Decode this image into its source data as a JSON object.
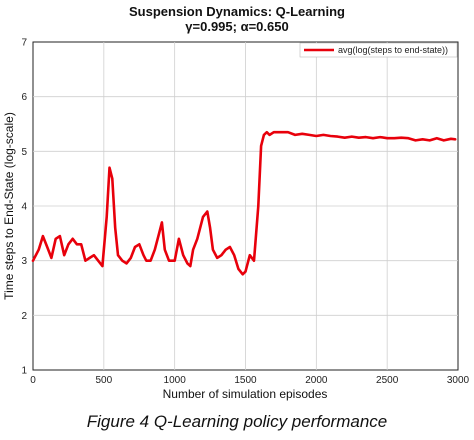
{
  "caption": "Figure 4 Q-Learning policy performance",
  "chart_data": {
    "type": "line",
    "title": "Suspension Dynamics: Q-Learning",
    "subtitle": "γ=0.995; α=0.650",
    "xlabel": "Number of simulation episodes",
    "ylabel": "Time steps to End-State (log-scale)",
    "xlim": [
      0,
      3000
    ],
    "ylim": [
      1,
      7
    ],
    "xticks": [
      "0",
      "500",
      "1000",
      "1500",
      "2000",
      "2500",
      "3000"
    ],
    "yticks": [
      "1",
      "2",
      "3",
      "4",
      "5",
      "6",
      "7"
    ],
    "grid": true,
    "legend_position": "top-right",
    "series": [
      {
        "name": "avg(log(steps to end-state))",
        "color": "#e8000b",
        "x": [
          0,
          40,
          70,
          100,
          130,
          160,
          190,
          220,
          250,
          280,
          310,
          340,
          370,
          400,
          430,
          460,
          490,
          520,
          540,
          560,
          580,
          600,
          630,
          660,
          690,
          720,
          750,
          780,
          800,
          830,
          860,
          890,
          910,
          930,
          960,
          1000,
          1030,
          1060,
          1090,
          1110,
          1130,
          1160,
          1200,
          1230,
          1250,
          1270,
          1300,
          1330,
          1360,
          1390,
          1420,
          1450,
          1480,
          1500,
          1530,
          1560,
          1590,
          1610,
          1630,
          1650,
          1670,
          1700,
          1750,
          1800,
          1850,
          1900,
          1950,
          2000,
          2050,
          2100,
          2150,
          2200,
          2250,
          2300,
          2350,
          2400,
          2450,
          2500,
          2550,
          2600,
          2650,
          2700,
          2750,
          2800,
          2850,
          2900,
          2950,
          2980
        ],
        "values": [
          3.0,
          3.2,
          3.45,
          3.25,
          3.05,
          3.4,
          3.45,
          3.1,
          3.3,
          3.4,
          3.3,
          3.3,
          3.0,
          3.05,
          3.1,
          3.0,
          2.9,
          3.8,
          4.7,
          4.5,
          3.6,
          3.1,
          3.0,
          2.95,
          3.05,
          3.25,
          3.3,
          3.1,
          3.0,
          3.0,
          3.2,
          3.5,
          3.7,
          3.2,
          3.0,
          3.0,
          3.4,
          3.1,
          2.95,
          2.9,
          3.2,
          3.4,
          3.8,
          3.9,
          3.6,
          3.2,
          3.05,
          3.1,
          3.2,
          3.25,
          3.1,
          2.85,
          2.75,
          2.8,
          3.1,
          3.0,
          4.0,
          5.1,
          5.3,
          5.35,
          5.3,
          5.35,
          5.35,
          5.35,
          5.3,
          5.32,
          5.3,
          5.28,
          5.3,
          5.28,
          5.27,
          5.25,
          5.27,
          5.25,
          5.26,
          5.24,
          5.26,
          5.24,
          5.24,
          5.25,
          5.24,
          5.2,
          5.22,
          5.2,
          5.24,
          5.2,
          5.23,
          5.22
        ]
      }
    ]
  }
}
